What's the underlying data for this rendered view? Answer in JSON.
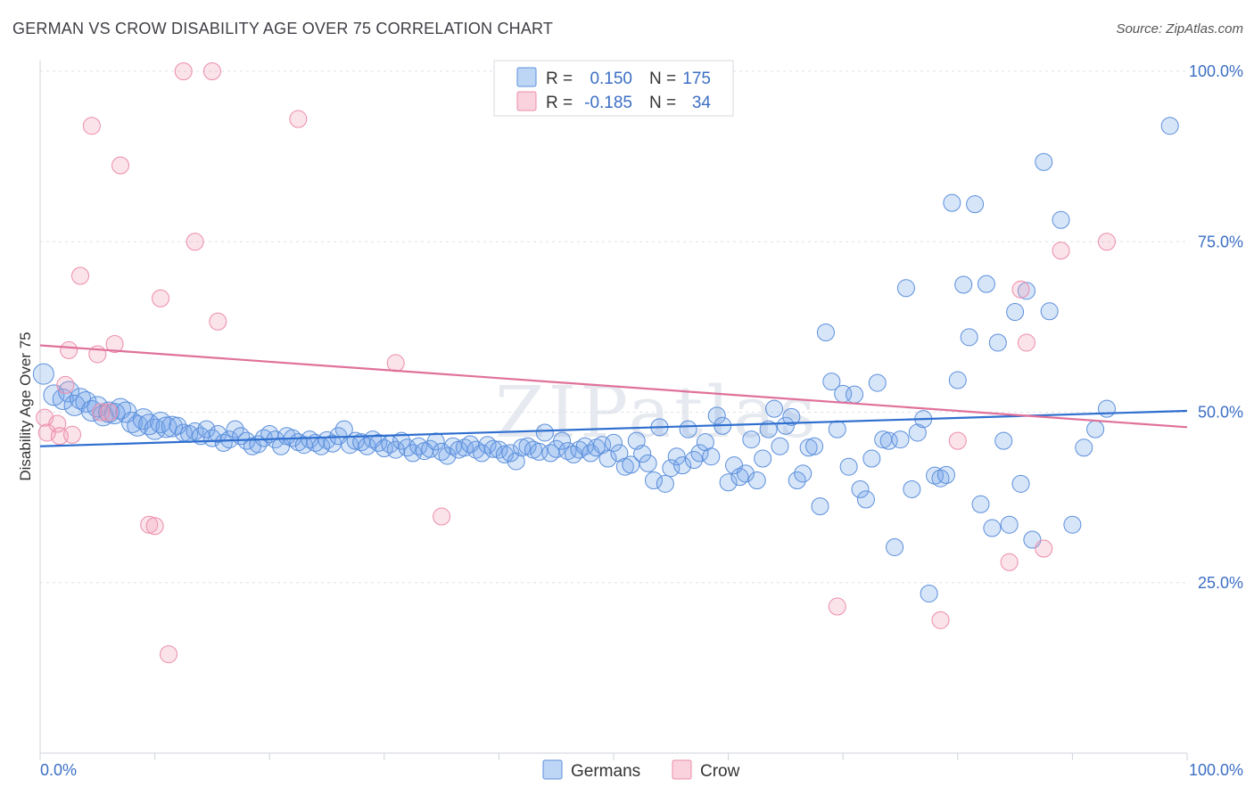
{
  "header": {
    "title": "GERMAN VS CROW DISABILITY AGE OVER 75 CORRELATION CHART",
    "source": "Source: ZipAtlas.com"
  },
  "watermark": "ZIPatlas",
  "legend_box": {
    "rows": [
      {
        "r_label": "R =",
        "r_value": "0.150",
        "n_label": "N =",
        "n_value": "175",
        "color": "#6fa3e8"
      },
      {
        "r_label": "R =",
        "r_value": "-0.185",
        "n_label": "N =",
        "n_value": "34",
        "color": "#f29bb5"
      }
    ]
  },
  "bottom_legend": [
    {
      "label": "Germans",
      "color": "#6fa3e8"
    },
    {
      "label": "Crow",
      "color": "#f29bb5"
    }
  ],
  "chart_data": {
    "type": "scatter",
    "title": "GERMAN VS CROW DISABILITY AGE OVER 75 CORRELATION CHART",
    "ylabel": "Disability Age Over 75",
    "xlabel": "",
    "xlim": [
      0,
      100
    ],
    "ylim": [
      0,
      100
    ],
    "x_tick_labels": [
      "0.0%",
      "100.0%"
    ],
    "y_tick_labels": [
      {
        "value": 100,
        "label": "100.0%"
      },
      {
        "value": 75,
        "label": "75.0%"
      },
      {
        "value": 50,
        "label": "50.0%"
      },
      {
        "value": 25,
        "label": "25.0%"
      }
    ],
    "grid": true,
    "legend_position": "bottom",
    "series": [
      {
        "name": "Germans",
        "color": "#6fa3e8",
        "trend": [
          [
            0,
            45.0
          ],
          [
            100,
            50.2
          ]
        ],
        "points": [
          [
            0.3,
            55.6
          ],
          [
            1.2,
            52.5
          ],
          [
            2.0,
            51.9
          ],
          [
            2.5,
            53.0
          ],
          [
            3.0,
            51.0
          ],
          [
            3.5,
            52.0
          ],
          [
            4.0,
            51.5
          ],
          [
            4.5,
            50.2
          ],
          [
            5.0,
            50.8
          ],
          [
            5.5,
            49.5
          ],
          [
            6.0,
            50.0
          ],
          [
            6.5,
            49.8
          ],
          [
            7.0,
            50.5
          ],
          [
            7.5,
            50.0
          ],
          [
            8.0,
            48.5
          ],
          [
            8.5,
            48.0
          ],
          [
            9.0,
            49.0
          ],
          [
            9.5,
            48.2
          ],
          [
            10.0,
            47.5
          ],
          [
            10.5,
            48.5
          ],
          [
            11.0,
            47.8
          ],
          [
            11.5,
            47.9
          ],
          [
            12.0,
            48.0
          ],
          [
            12.5,
            47.0
          ],
          [
            13.0,
            46.8
          ],
          [
            13.5,
            47.2
          ],
          [
            14.0,
            46.5
          ],
          [
            14.5,
            47.5
          ],
          [
            15.0,
            46.2
          ],
          [
            15.5,
            46.8
          ],
          [
            16.0,
            45.5
          ],
          [
            16.5,
            46.0
          ],
          [
            17.0,
            47.5
          ],
          [
            17.5,
            46.5
          ],
          [
            18.0,
            45.8
          ],
          [
            18.5,
            45.0
          ],
          [
            19.0,
            45.3
          ],
          [
            19.5,
            46.2
          ],
          [
            20.0,
            46.8
          ],
          [
            20.5,
            46.0
          ],
          [
            21.0,
            45.0
          ],
          [
            21.5,
            46.5
          ],
          [
            22.0,
            46.2
          ],
          [
            22.5,
            45.6
          ],
          [
            23.0,
            45.2
          ],
          [
            23.5,
            46.0
          ],
          [
            24.0,
            45.5
          ],
          [
            24.5,
            45.0
          ],
          [
            25.0,
            45.9
          ],
          [
            25.5,
            45.4
          ],
          [
            26.0,
            46.5
          ],
          [
            26.5,
            47.5
          ],
          [
            27.0,
            45.2
          ],
          [
            27.5,
            45.8
          ],
          [
            28.0,
            45.6
          ],
          [
            28.5,
            45.0
          ],
          [
            29.0,
            46.0
          ],
          [
            29.5,
            45.5
          ],
          [
            30.0,
            44.7
          ],
          [
            30.5,
            45.3
          ],
          [
            31.0,
            44.5
          ],
          [
            31.5,
            45.8
          ],
          [
            32.0,
            44.8
          ],
          [
            32.5,
            44.0
          ],
          [
            33.0,
            45.0
          ],
          [
            33.5,
            44.3
          ],
          [
            34.0,
            44.6
          ],
          [
            34.5,
            45.7
          ],
          [
            35.0,
            44.2
          ],
          [
            35.5,
            43.6
          ],
          [
            36.0,
            45.0
          ],
          [
            36.5,
            44.5
          ],
          [
            37.0,
            44.8
          ],
          [
            37.5,
            45.3
          ],
          [
            38.0,
            44.5
          ],
          [
            38.5,
            44.0
          ],
          [
            39.0,
            45.2
          ],
          [
            39.5,
            44.6
          ],
          [
            40.0,
            44.5
          ],
          [
            40.5,
            43.8
          ],
          [
            41.0,
            44.0
          ],
          [
            41.5,
            42.8
          ],
          [
            42.0,
            44.8
          ],
          [
            42.5,
            45.0
          ],
          [
            43.0,
            44.5
          ],
          [
            43.5,
            44.2
          ],
          [
            44.0,
            47.0
          ],
          [
            44.5,
            44.0
          ],
          [
            45.0,
            44.6
          ],
          [
            45.5,
            45.8
          ],
          [
            46.0,
            44.3
          ],
          [
            46.5,
            43.8
          ],
          [
            47.0,
            44.5
          ],
          [
            47.5,
            45.0
          ],
          [
            48.0,
            44.0
          ],
          [
            48.5,
            44.8
          ],
          [
            49.0,
            45.2
          ],
          [
            49.5,
            43.2
          ],
          [
            50.0,
            45.5
          ],
          [
            50.5,
            44.0
          ],
          [
            51.0,
            42.0
          ],
          [
            51.5,
            42.3
          ],
          [
            52.0,
            45.8
          ],
          [
            52.5,
            43.9
          ],
          [
            53.0,
            42.5
          ],
          [
            53.5,
            40.0
          ],
          [
            54.0,
            47.8
          ],
          [
            54.5,
            39.5
          ],
          [
            55.0,
            41.8
          ],
          [
            55.5,
            43.5
          ],
          [
            56.0,
            42.2
          ],
          [
            56.5,
            47.5
          ],
          [
            57.0,
            43.0
          ],
          [
            57.5,
            44.0
          ],
          [
            58.0,
            45.6
          ],
          [
            58.5,
            43.5
          ],
          [
            59.0,
            49.5
          ],
          [
            59.5,
            48.0
          ],
          [
            60.0,
            39.7
          ],
          [
            60.5,
            42.2
          ],
          [
            61.0,
            40.5
          ],
          [
            61.5,
            41.0
          ],
          [
            62.0,
            46.0
          ],
          [
            62.5,
            40.0
          ],
          [
            63.0,
            43.2
          ],
          [
            63.5,
            47.5
          ],
          [
            64.0,
            50.5
          ],
          [
            64.5,
            45.0
          ],
          [
            65.0,
            48.0
          ],
          [
            65.5,
            49.3
          ],
          [
            66.0,
            40.0
          ],
          [
            66.5,
            41.0
          ],
          [
            67.0,
            44.8
          ],
          [
            67.5,
            45.0
          ],
          [
            68.0,
            36.2
          ],
          [
            68.5,
            61.7
          ],
          [
            69.0,
            54.5
          ],
          [
            69.5,
            47.5
          ],
          [
            70.0,
            52.7
          ],
          [
            70.5,
            42.0
          ],
          [
            71.0,
            52.6
          ],
          [
            71.5,
            38.7
          ],
          [
            72.0,
            37.2
          ],
          [
            72.5,
            43.2
          ],
          [
            73.0,
            54.3
          ],
          [
            73.5,
            46.0
          ],
          [
            74.0,
            45.8
          ],
          [
            74.5,
            30.2
          ],
          [
            75.0,
            46.0
          ],
          [
            75.5,
            68.2
          ],
          [
            76.0,
            38.7
          ],
          [
            76.5,
            47.0
          ],
          [
            77.0,
            49.0
          ],
          [
            77.5,
            23.4
          ],
          [
            78.0,
            40.7
          ],
          [
            78.5,
            40.3
          ],
          [
            79.0,
            40.8
          ],
          [
            79.5,
            80.7
          ],
          [
            80.0,
            54.7
          ],
          [
            80.5,
            68.7
          ],
          [
            81.0,
            61.0
          ],
          [
            81.5,
            80.5
          ],
          [
            82.0,
            36.5
          ],
          [
            82.5,
            68.8
          ],
          [
            83.0,
            33.0
          ],
          [
            83.5,
            60.2
          ],
          [
            84.0,
            45.8
          ],
          [
            84.5,
            33.5
          ],
          [
            85.0,
            64.7
          ],
          [
            85.5,
            39.5
          ],
          [
            86.0,
            67.8
          ],
          [
            86.5,
            31.3
          ],
          [
            87.5,
            86.7
          ],
          [
            88.0,
            64.8
          ],
          [
            89.0,
            78.2
          ],
          [
            90.0,
            33.5
          ],
          [
            91.0,
            44.8
          ],
          [
            92.0,
            47.5
          ],
          [
            93.0,
            50.5
          ],
          [
            98.5,
            92.0
          ]
        ]
      },
      {
        "name": "Crow",
        "color": "#f29bb5",
        "trend": [
          [
            0,
            59.8
          ],
          [
            100,
            47.8
          ]
        ],
        "points": [
          [
            0.4,
            49.2
          ],
          [
            0.6,
            47.0
          ],
          [
            1.5,
            48.3
          ],
          [
            1.7,
            46.5
          ],
          [
            2.2,
            54.0
          ],
          [
            2.5,
            59.1
          ],
          [
            2.8,
            46.7
          ],
          [
            3.5,
            70.0
          ],
          [
            4.5,
            92.0
          ],
          [
            5.0,
            58.5
          ],
          [
            5.3,
            50.0
          ],
          [
            6.0,
            50.0
          ],
          [
            6.5,
            60.0
          ],
          [
            7.0,
            86.2
          ],
          [
            9.5,
            33.5
          ],
          [
            10.0,
            33.3
          ],
          [
            10.5,
            66.7
          ],
          [
            11.2,
            14.5
          ],
          [
            12.5,
            100.0
          ],
          [
            13.5,
            75.0
          ],
          [
            15.0,
            100.0
          ],
          [
            15.5,
            63.3
          ],
          [
            22.5,
            93.0
          ],
          [
            31.0,
            57.2
          ],
          [
            35.0,
            34.7
          ],
          [
            69.5,
            21.5
          ],
          [
            78.5,
            19.5
          ],
          [
            80.0,
            45.8
          ],
          [
            84.5,
            28.0
          ],
          [
            85.5,
            68.0
          ],
          [
            86.0,
            60.2
          ],
          [
            87.5,
            30.0
          ],
          [
            89.0,
            73.7
          ],
          [
            93.0,
            75.0
          ]
        ]
      }
    ]
  }
}
